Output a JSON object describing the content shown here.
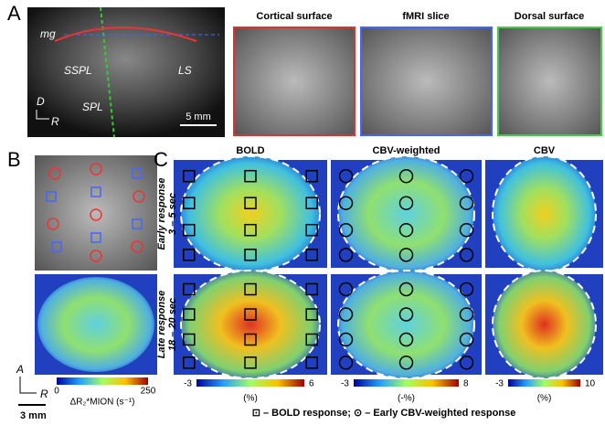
{
  "panel_a": {
    "label": "A",
    "annotations": {
      "mg": "mg",
      "sspl": "SSPL",
      "ls": "LS",
      "spl": "SPL",
      "d": "D",
      "r": "R",
      "scale": "5 mm"
    },
    "titles": [
      "Cortical surface",
      "fMRI slice",
      "Dorsal surface"
    ]
  },
  "panel_b": {
    "label": "B",
    "colorbar": {
      "min": 0,
      "max": 250,
      "label": "ΔR₂*MION (s⁻¹)"
    },
    "orientation": {
      "a": "A",
      "r": "R",
      "scale": "3 mm"
    }
  },
  "panel_c": {
    "label": "C",
    "columns": [
      "BOLD",
      "CBV-weighted",
      "CBV"
    ],
    "rows": [
      [
        "Early response",
        "3 – 5 sec"
      ],
      [
        "Late response",
        "18 – 20 sec"
      ]
    ],
    "colorbars": [
      {
        "min": -3,
        "max": 6,
        "unit": "(%)"
      },
      {
        "min": -3,
        "max": 8,
        "unit": "(-%)"
      },
      {
        "min": -3,
        "max": 10,
        "unit": "(%)"
      }
    ],
    "legend": "⊡ – BOLD response; ⊙ – Early CBV-weighted response"
  }
}
